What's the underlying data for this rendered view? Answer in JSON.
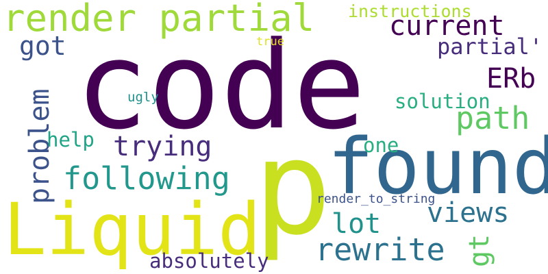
{
  "words": {
    "code": "code",
    "p": "p",
    "found": "found",
    "liquid": "Liquid",
    "render_partial": "render partial",
    "current": "current",
    "instructions": "instructions",
    "got": "got",
    "true_word": "true",
    "partial_quote": "partial'",
    "erb": "ERb",
    "problem": "problem",
    "ugly": "ugly",
    "solution": "solution",
    "path": "path",
    "help": "help",
    "trying": "trying",
    "one": "one",
    "following": "following",
    "render_to_string": "render_to_string",
    "views": "views",
    "lot": "lot",
    "gt": "gt",
    "rewrite": "rewrite",
    "absolutely": "absolutely"
  },
  "colors": {
    "dark_purple": "#440154",
    "indigo": "#472d7b",
    "slate_blue": "#3b528b",
    "steel_blue": "#2c728e",
    "teal": "#21918c",
    "sea_green": "#28ae80",
    "green": "#5ec962",
    "lime": "#addc30",
    "yellow_green": "#c8e020",
    "yellow": "#e0e024"
  }
}
